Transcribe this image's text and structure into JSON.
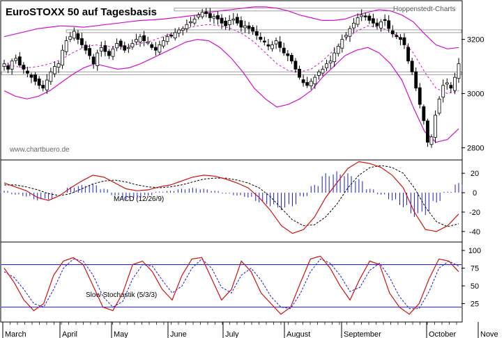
{
  "chart_data": {
    "type": "line",
    "title": "EuroSTOXX 50 auf Tagesbasis",
    "source": "Hoppenstedt-Charts",
    "watermark": "www.chartbuero.de",
    "x_months": [
      "March",
      "April",
      "May",
      "June",
      "July",
      "August",
      "September",
      "October",
      "Nove"
    ],
    "price_panel": {
      "type": "candlestick",
      "ylim": [
        2760,
        3330
      ],
      "yticks": [
        3200,
        3000,
        2800
      ],
      "resistance_levels": [
        3310,
        3230,
        3075
      ],
      "candles_summary": "daily OHLC candles with Bollinger bands",
      "close": [
        3110,
        3090,
        3120,
        3130,
        3105,
        3090,
        3075,
        3060,
        3045,
        3030,
        3020,
        3050,
        3080,
        3100,
        3110,
        3160,
        3195,
        3210,
        3230,
        3200,
        3180,
        3160,
        3140,
        3110,
        3150,
        3170,
        3155,
        3140,
        3165,
        3185,
        3175,
        3160,
        3170,
        3185,
        3200,
        3210,
        3195,
        3190,
        3170,
        3160,
        3180,
        3195,
        3210,
        3215,
        3225,
        3235,
        3240,
        3255,
        3265,
        3275,
        3290,
        3300,
        3295,
        3280,
        3285,
        3275,
        3260,
        3250,
        3270,
        3275,
        3260,
        3245,
        3250,
        3240,
        3230,
        3215,
        3200,
        3190,
        3175,
        3180,
        3195,
        3170,
        3150,
        3140,
        3120,
        3090,
        3060,
        3040,
        3030,
        3045,
        3060,
        3080,
        3090,
        3110,
        3120,
        3150,
        3175,
        3200,
        3215,
        3240,
        3260,
        3280,
        3290,
        3285,
        3270,
        3260,
        3250,
        3265,
        3270,
        3240,
        3220,
        3210,
        3200,
        3180,
        3120,
        3080,
        3020,
        2960,
        2900,
        2820,
        2840,
        2920,
        2980,
        3030,
        3040,
        3020,
        3060,
        3110
      ],
      "bollinger": {
        "upper": [
          3210,
          3220,
          3230,
          3240,
          3245,
          3250,
          3248,
          3245,
          3250,
          3255,
          3260,
          3265,
          3270,
          3272,
          3275,
          3280,
          3285,
          3290,
          3300,
          3305,
          3310,
          3315,
          3320,
          3320,
          3315,
          3305,
          3290,
          3280,
          3270,
          3270,
          3275,
          3290,
          3300,
          3310,
          3305,
          3290,
          3265,
          3220,
          3180,
          3165,
          3170
        ],
        "mid": [
          3110,
          3100,
          3095,
          3100,
          3110,
          3125,
          3150,
          3170,
          3180,
          3175,
          3170,
          3175,
          3185,
          3195,
          3210,
          3225,
          3240,
          3250,
          3255,
          3250,
          3240,
          3220,
          3190,
          3150,
          3110,
          3085,
          3080,
          3090,
          3120,
          3160,
          3200,
          3230,
          3250,
          3245,
          3230,
          3200,
          3150,
          3080,
          3020,
          3000,
          3010
        ],
        "lower": [
          3010,
          2990,
          2980,
          2990,
          3010,
          3040,
          3070,
          3095,
          3110,
          3100,
          3090,
          3095,
          3110,
          3130,
          3150,
          3170,
          3190,
          3200,
          3195,
          3170,
          3130,
          3080,
          3020,
          2980,
          2950,
          2960,
          2980,
          3010,
          3060,
          3100,
          3140,
          3160,
          3170,
          3150,
          3110,
          3050,
          2950,
          2860,
          2820,
          2830,
          2870
        ]
      }
    },
    "macd_panel": {
      "label": "MACD (12/26/9)",
      "ylim": [
        -48,
        28
      ],
      "yticks": [
        20,
        0,
        -20,
        -40
      ],
      "macd": [
        10,
        6,
        2,
        -5,
        -8,
        -3,
        5,
        12,
        18,
        16,
        10,
        4,
        2,
        3,
        6,
        8,
        12,
        16,
        18,
        17,
        14,
        10,
        5,
        -5,
        -18,
        -34,
        -42,
        -38,
        -25,
        -5,
        10,
        25,
        32,
        30,
        26,
        18,
        5,
        -20,
        -38,
        -40,
        -34,
        -22
      ],
      "signal": [
        8,
        8,
        6,
        3,
        -1,
        -3,
        -1,
        4,
        9,
        12,
        13,
        11,
        8,
        6,
        5,
        6,
        8,
        11,
        14,
        15,
        15,
        13,
        10,
        5,
        -4,
        -16,
        -28,
        -34,
        -33,
        -25,
        -12,
        5,
        18,
        26,
        28,
        26,
        20,
        5,
        -15,
        -30,
        -35,
        -32
      ],
      "histogram": [
        2,
        -2,
        -4,
        -8,
        -7,
        0,
        6,
        8,
        9,
        4,
        -3,
        -7,
        -6,
        -3,
        1,
        2,
        4,
        5,
        4,
        2,
        -1,
        -3,
        -5,
        -10,
        -14,
        -18,
        -14,
        -4,
        8,
        20,
        22,
        20,
        14,
        4,
        -2,
        -8,
        -15,
        -25,
        -23,
        -10,
        1,
        10
      ]
    },
    "stochastic_panel": {
      "label": "Slow Stochastik (5/3/3)",
      "ylim": [
        0,
        108
      ],
      "yticks": [
        100,
        75,
        50,
        25
      ],
      "bands": [
        80,
        20
      ],
      "k": [
        75,
        55,
        30,
        15,
        25,
        65,
        85,
        90,
        80,
        50,
        20,
        15,
        40,
        80,
        85,
        70,
        45,
        30,
        65,
        88,
        90,
        60,
        30,
        45,
        85,
        70,
        40,
        25,
        10,
        20,
        55,
        88,
        92,
        75,
        50,
        30,
        60,
        85,
        80,
        40,
        20,
        10,
        25,
        60,
        88,
        85,
        70
      ],
      "d": [
        70,
        62,
        45,
        25,
        20,
        45,
        75,
        88,
        85,
        65,
        35,
        20,
        28,
        60,
        80,
        78,
        58,
        40,
        50,
        75,
        88,
        75,
        48,
        40,
        65,
        75,
        58,
        35,
        20,
        18,
        40,
        70,
        88,
        82,
        65,
        42,
        48,
        72,
        82,
        62,
        35,
        18,
        18,
        42,
        75,
        85,
        78
      ]
    }
  }
}
